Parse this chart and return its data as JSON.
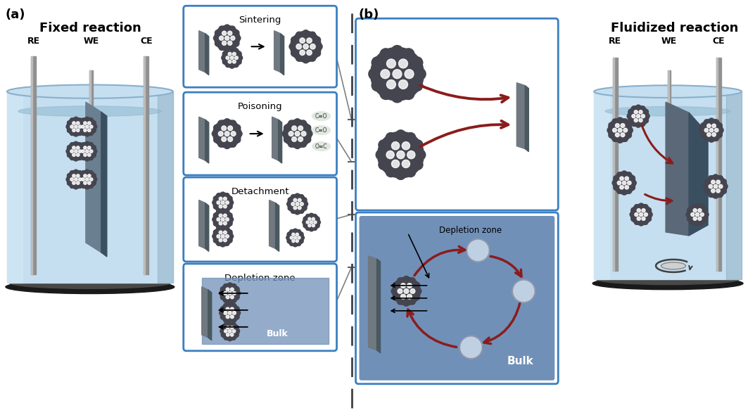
{
  "title_a": "Fixed reaction",
  "title_b": "Fluidized reaction",
  "label_a": "(a)",
  "label_b": "(b)",
  "bg_color": "#ffffff",
  "liquid_color": "#c5dff0",
  "liquid_dark": "#8fb8d0",
  "beaker_wall": "#a8cce0",
  "electrode_color": "#909090",
  "box_border_color": "#3a7fc1",
  "np_dark": "#3a3a42",
  "np_mid": "#555560",
  "arrow_red": "#8b1c1c",
  "plate_face": "#6a7f90",
  "plate_side": "#3a5060",
  "plate_dark": "#2a3f50",
  "depl_bg": "#7090b8",
  "depl_bg2": "#6888b0"
}
